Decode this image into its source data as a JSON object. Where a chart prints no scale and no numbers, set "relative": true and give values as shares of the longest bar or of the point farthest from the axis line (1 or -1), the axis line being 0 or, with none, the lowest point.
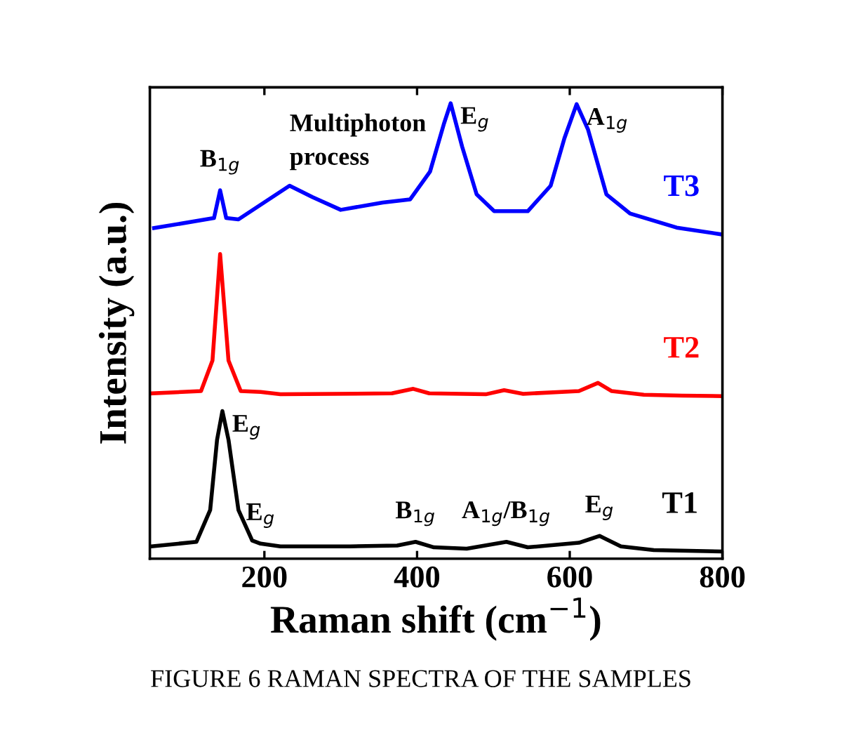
{
  "chart_data": {
    "type": "line",
    "relative": true,
    "xlabel": "Raman shift (cm$^{−1}$)",
    "ylabel": "Intensity (a.u.)",
    "xlim": [
      50,
      800
    ],
    "xticks": [
      200,
      400,
      600,
      800
    ],
    "grid": false,
    "legend": false,
    "marker": "none",
    "line_style": "solid",
    "series": [
      {
        "name": "T3",
        "color": "#0000ff",
        "x": [
          55.5,
          134,
          142,
          150,
          166,
          233,
          263,
          300,
          355,
          391,
          417,
          435,
          444,
          459,
          478,
          501,
          545,
          575,
          593,
          609,
          624,
          648,
          679,
          740,
          799
        ],
        "values": [
          0.726,
          0.748,
          0.809,
          0.748,
          0.745,
          0.819,
          0.794,
          0.766,
          0.782,
          0.789,
          0.85,
          0.954,
          1.0,
          0.905,
          0.8,
          0.763,
          0.763,
          0.819,
          0.923,
          0.998,
          0.942,
          0.8,
          0.758,
          0.727,
          0.712
        ]
      },
      {
        "name": "T2",
        "color": "#ff0000",
        "x": [
          52,
          117,
          132,
          142,
          153,
          169,
          195,
          221,
          367,
          395,
          416,
          490,
          514,
          539,
          612,
          637,
          655,
          697,
          747,
          799
        ],
        "values": [
          0.363,
          0.368,
          0.435,
          0.669,
          0.435,
          0.368,
          0.366,
          0.361,
          0.363,
          0.373,
          0.363,
          0.361,
          0.37,
          0.362,
          0.368,
          0.386,
          0.368,
          0.36,
          0.358,
          0.357
        ]
      },
      {
        "name": "T1",
        "color": "#000000",
        "x": [
          52,
          111,
          129,
          138,
          145,
          153,
          166,
          184,
          195,
          221,
          312,
          374,
          398,
          422,
          465,
          517,
          545,
          612,
          639,
          667,
          710,
          797
        ],
        "values": [
          0.027,
          0.037,
          0.107,
          0.261,
          0.324,
          0.261,
          0.107,
          0.04,
          0.033,
          0.027,
          0.027,
          0.029,
          0.037,
          0.025,
          0.022,
          0.037,
          0.025,
          0.035,
          0.05,
          0.027,
          0.019,
          0.016
        ]
      }
    ],
    "annotations": [
      {
        "text": "B$_{1g}$",
        "x": 142,
        "y": 0.809
      },
      {
        "text": "Multiphoton\nprocess",
        "x": 233,
        "y": 0.819
      },
      {
        "text": "E$_{g}$",
        "x": 444,
        "y": 1.0
      },
      {
        "text": "A$_{1g}$",
        "x": 609,
        "y": 0.998
      },
      {
        "text": "E$_{g}$",
        "x": 145,
        "y": 0.324
      },
      {
        "text": "E$_{g}$",
        "x": 195,
        "y": 0.033
      },
      {
        "text": "B$_{1g}$",
        "x": 398,
        "y": 0.037
      },
      {
        "text": "A$_{1g}$/B$_{1g}$",
        "x": 517,
        "y": 0.037
      },
      {
        "text": "E$_{g}$",
        "x": 639,
        "y": 0.05
      },
      "FIGURE 6 RAMAN SPECTRA OF THE SAMPLES"
    ]
  }
}
